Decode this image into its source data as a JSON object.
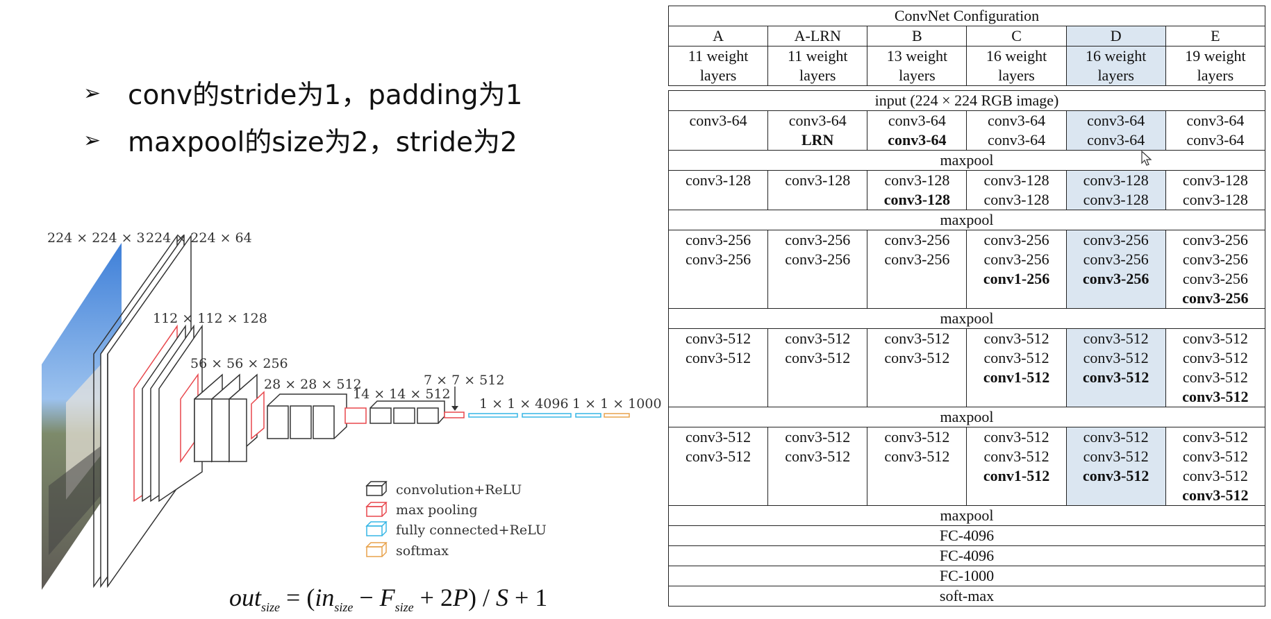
{
  "bullets": [
    "conv的stride为1，padding为1",
    "maxpool的size为2，stride为2"
  ],
  "diagram": {
    "dims": {
      "input": "224 × 224 × 3",
      "conv1": "224 × 224 × 64",
      "conv2": "112 × 112 × 128",
      "conv3": "56 × 56 × 256",
      "conv4": "28 × 28 × 512",
      "conv5": "14 × 14 × 512",
      "pool5": "7 × 7 × 512",
      "fc": "1 × 1 × 4096",
      "softmax": "1 × 1 × 1000"
    },
    "legend": [
      {
        "label": "convolution+ReLU",
        "color": "#333333"
      },
      {
        "label": "max pooling",
        "color": "#e8474c"
      },
      {
        "label": "fully connected+ReLU",
        "color": "#35b6e5"
      },
      {
        "label": "softmax",
        "color": "#e8a24c"
      }
    ]
  },
  "formula": {
    "out": "out",
    "out_sub": "size",
    "eq": " = (",
    "in": "in",
    "in_sub": "size",
    "minus": " − ",
    "F": "F",
    "F_sub": "size",
    "plus": " + 2",
    "P": "P",
    "close": ") / ",
    "S": "S",
    "end": " + 1"
  },
  "table": {
    "title": "ConvNet Configuration",
    "columns": [
      "A",
      "A-LRN",
      "B",
      "C",
      "D",
      "E"
    ],
    "subheaders": [
      [
        "11 weight",
        "layers"
      ],
      [
        "11 weight",
        "layers"
      ],
      [
        "13 weight",
        "layers"
      ],
      [
        "16 weight",
        "layers"
      ],
      [
        "16 weight",
        "layers"
      ],
      [
        "19 weight",
        "layers"
      ]
    ],
    "input_row": "input (224 × 224 RGB image)",
    "blocks": [
      [
        [
          {
            "t": "conv3-64"
          }
        ],
        [
          {
            "t": "conv3-64"
          },
          {
            "t": "LRN",
            "b": true
          }
        ],
        [
          {
            "t": "conv3-64"
          },
          {
            "t": "conv3-64",
            "b": true
          }
        ],
        [
          {
            "t": "conv3-64"
          },
          {
            "t": "conv3-64"
          }
        ],
        [
          {
            "t": "conv3-64"
          },
          {
            "t": "conv3-64"
          }
        ],
        [
          {
            "t": "conv3-64"
          },
          {
            "t": "conv3-64"
          }
        ]
      ],
      [
        [
          {
            "t": "conv3-128"
          }
        ],
        [
          {
            "t": "conv3-128"
          }
        ],
        [
          {
            "t": "conv3-128"
          },
          {
            "t": "conv3-128",
            "b": true
          }
        ],
        [
          {
            "t": "conv3-128"
          },
          {
            "t": "conv3-128"
          }
        ],
        [
          {
            "t": "conv3-128"
          },
          {
            "t": "conv3-128"
          }
        ],
        [
          {
            "t": "conv3-128"
          },
          {
            "t": "conv3-128"
          }
        ]
      ],
      [
        [
          {
            "t": "conv3-256"
          },
          {
            "t": "conv3-256"
          }
        ],
        [
          {
            "t": "conv3-256"
          },
          {
            "t": "conv3-256"
          }
        ],
        [
          {
            "t": "conv3-256"
          },
          {
            "t": "conv3-256"
          }
        ],
        [
          {
            "t": "conv3-256"
          },
          {
            "t": "conv3-256"
          },
          {
            "t": "conv1-256",
            "b": true
          }
        ],
        [
          {
            "t": "conv3-256"
          },
          {
            "t": "conv3-256"
          },
          {
            "t": "conv3-256",
            "b": true
          }
        ],
        [
          {
            "t": "conv3-256"
          },
          {
            "t": "conv3-256"
          },
          {
            "t": "conv3-256"
          },
          {
            "t": "conv3-256",
            "b": true
          }
        ]
      ],
      [
        [
          {
            "t": "conv3-512"
          },
          {
            "t": "conv3-512"
          }
        ],
        [
          {
            "t": "conv3-512"
          },
          {
            "t": "conv3-512"
          }
        ],
        [
          {
            "t": "conv3-512"
          },
          {
            "t": "conv3-512"
          }
        ],
        [
          {
            "t": "conv3-512"
          },
          {
            "t": "conv3-512"
          },
          {
            "t": "conv1-512",
            "b": true
          }
        ],
        [
          {
            "t": "conv3-512"
          },
          {
            "t": "conv3-512"
          },
          {
            "t": "conv3-512",
            "b": true
          }
        ],
        [
          {
            "t": "conv3-512"
          },
          {
            "t": "conv3-512"
          },
          {
            "t": "conv3-512"
          },
          {
            "t": "conv3-512",
            "b": true
          }
        ]
      ],
      [
        [
          {
            "t": "conv3-512"
          },
          {
            "t": "conv3-512"
          }
        ],
        [
          {
            "t": "conv3-512"
          },
          {
            "t": "conv3-512"
          }
        ],
        [
          {
            "t": "conv3-512"
          },
          {
            "t": "conv3-512"
          }
        ],
        [
          {
            "t": "conv3-512"
          },
          {
            "t": "conv3-512"
          },
          {
            "t": "conv1-512",
            "b": true
          }
        ],
        [
          {
            "t": "conv3-512"
          },
          {
            "t": "conv3-512"
          },
          {
            "t": "conv3-512",
            "b": true
          }
        ],
        [
          {
            "t": "conv3-512"
          },
          {
            "t": "conv3-512"
          },
          {
            "t": "conv3-512"
          },
          {
            "t": "conv3-512",
            "b": true
          }
        ]
      ]
    ],
    "separator": "maxpool",
    "tail_rows": [
      "maxpool",
      "FC-4096",
      "FC-4096",
      "FC-1000",
      "soft-max"
    ],
    "highlight_column": "D",
    "highlight_color": "#dbe6f1"
  }
}
